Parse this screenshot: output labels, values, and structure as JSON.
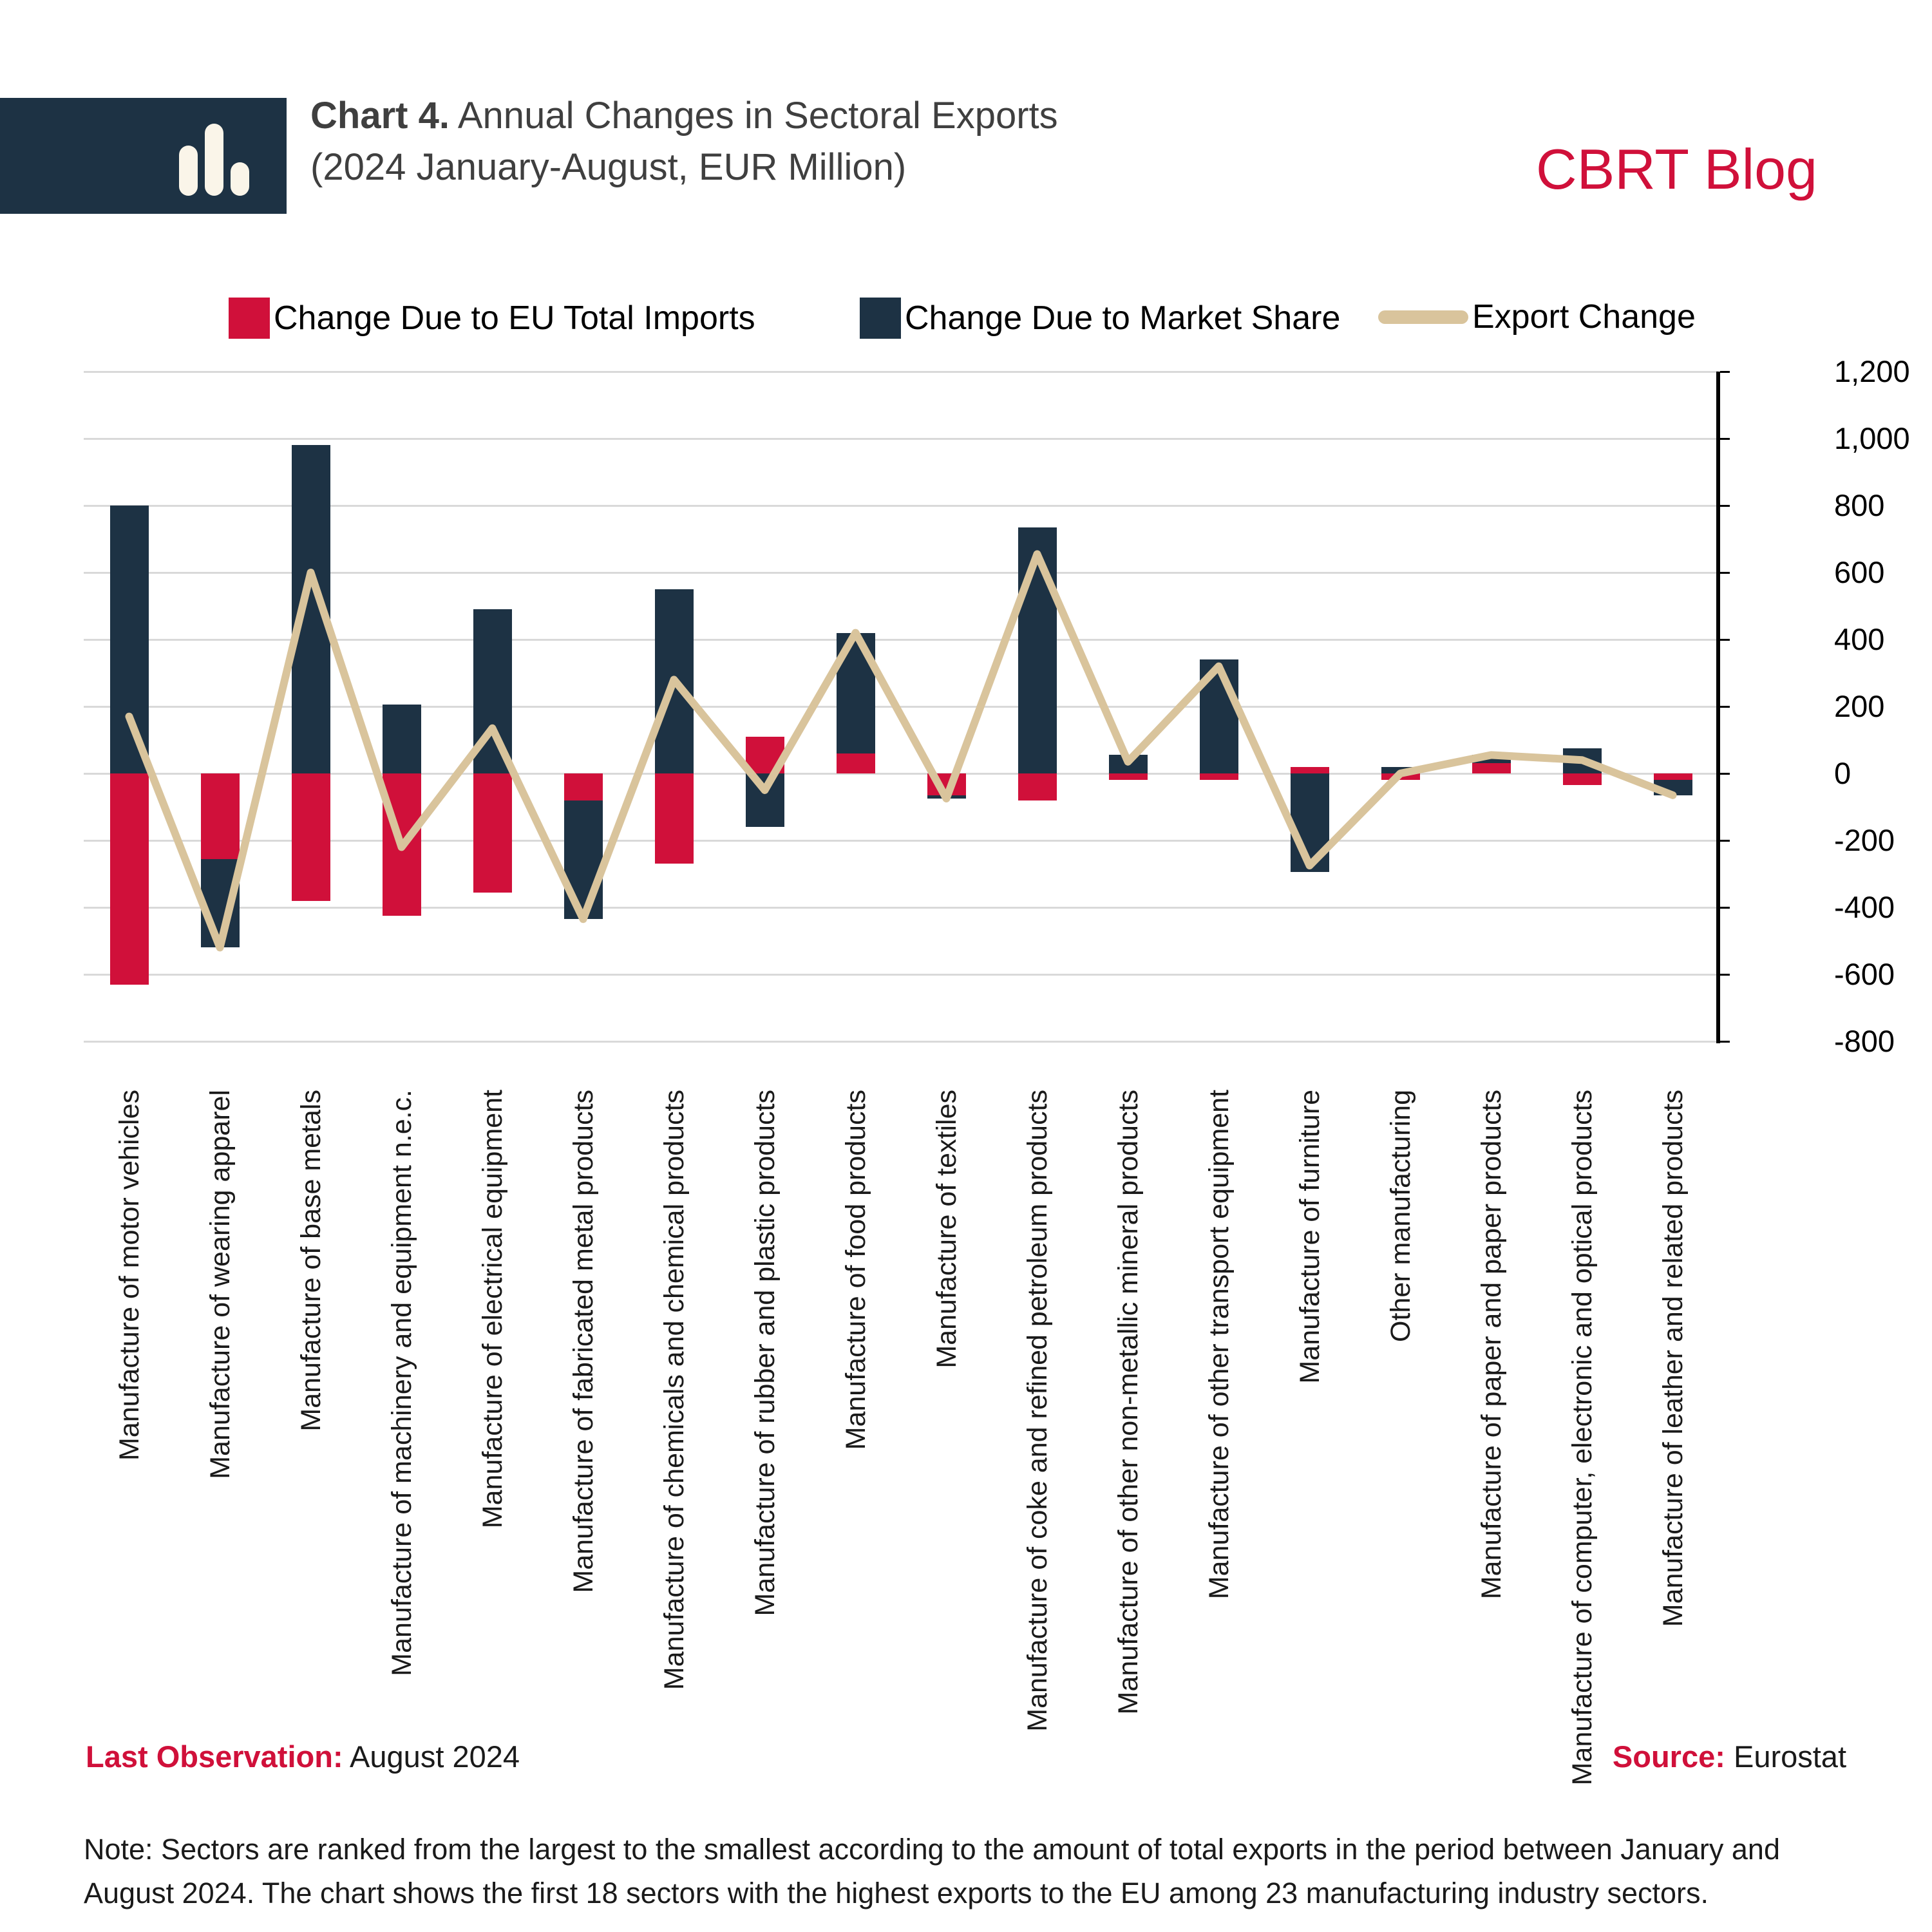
{
  "header": {
    "chart_label": "Chart 4.",
    "title_rest": " Annual Changes in Sectoral Exports",
    "subtitle": "(2024 January-August, EUR Million)",
    "brand": "CBRT Blog"
  },
  "footer": {
    "last_observation_label": "Last Observation:",
    "last_observation_value": " August 2024",
    "source_label": "Source:",
    "source_value": " Eurostat",
    "note": "Note: Sectors are ranked from the largest to the smallest according to the amount of total exports in the period between January and August 2024. The chart shows the first 18 sectors with the highest exports to the EU among 23 manufacturing industry sectors."
  },
  "colors": {
    "navy": "#1d3244",
    "red": "#d0103a",
    "tan": "#d9c49c",
    "grid": "#d9d9d9",
    "title_gray": "#3f3f3f"
  },
  "chart_data": {
    "type": "bar",
    "subtype": "stacked-bars-with-line",
    "title": "Annual Changes in Sectoral Exports (2024 January-August, EUR Million)",
    "grid": true,
    "legend_position": "top",
    "ylim": [
      -800,
      1200
    ],
    "ytick_step": 200,
    "ytick_labels": [
      "1,200",
      "1,000",
      "800",
      "600",
      "400",
      "200",
      "0",
      "-200",
      "-400",
      "-600",
      "-800"
    ],
    "categories": [
      "Manufacture of motor vehicles",
      "Manufacture of wearing apparel",
      "Manufacture of base metals",
      "Manufacture of machinery and equipment n.e.c.",
      "Manufacture of electrical equipment",
      "Manufacture of fabricated metal products",
      "Manufacture of chemicals and chemical products",
      "Manufacture of rubber and plastic products",
      "Manufacture of food products",
      "Manufacture of textiles",
      "Manufacture of coke and refined petroleum products",
      "Manufacture of other non-metallic mineral products",
      "Manufacture of other transport equipment",
      "Manufacture of furniture",
      "Other manufacturing",
      "Manufacture of paper and paper products",
      "Manufacture of computer, electronic and optical products",
      "Manufacture of leather and related products"
    ],
    "series": [
      {
        "name": "Change Due to EU Total Imports",
        "kind": "bar",
        "color": "#d0103a",
        "values": [
          -630,
          -255,
          -380,
          -425,
          -355,
          -80,
          -270,
          110,
          60,
          -65,
          -80,
          -20,
          -20,
          20,
          -20,
          30,
          -35,
          -20
        ]
      },
      {
        "name": "Change Due to Market Share",
        "kind": "bar",
        "color": "#1d3244",
        "values": [
          800,
          -265,
          980,
          205,
          490,
          -355,
          550,
          -160,
          360,
          -10,
          735,
          55,
          340,
          -295,
          20,
          25,
          75,
          -45
        ]
      },
      {
        "name": "Export Change",
        "kind": "line",
        "color": "#d9c49c",
        "values": [
          170,
          -520,
          600,
          -220,
          135,
          -435,
          280,
          -50,
          420,
          -75,
          655,
          35,
          320,
          -275,
          0,
          55,
          40,
          -65
        ]
      }
    ]
  }
}
